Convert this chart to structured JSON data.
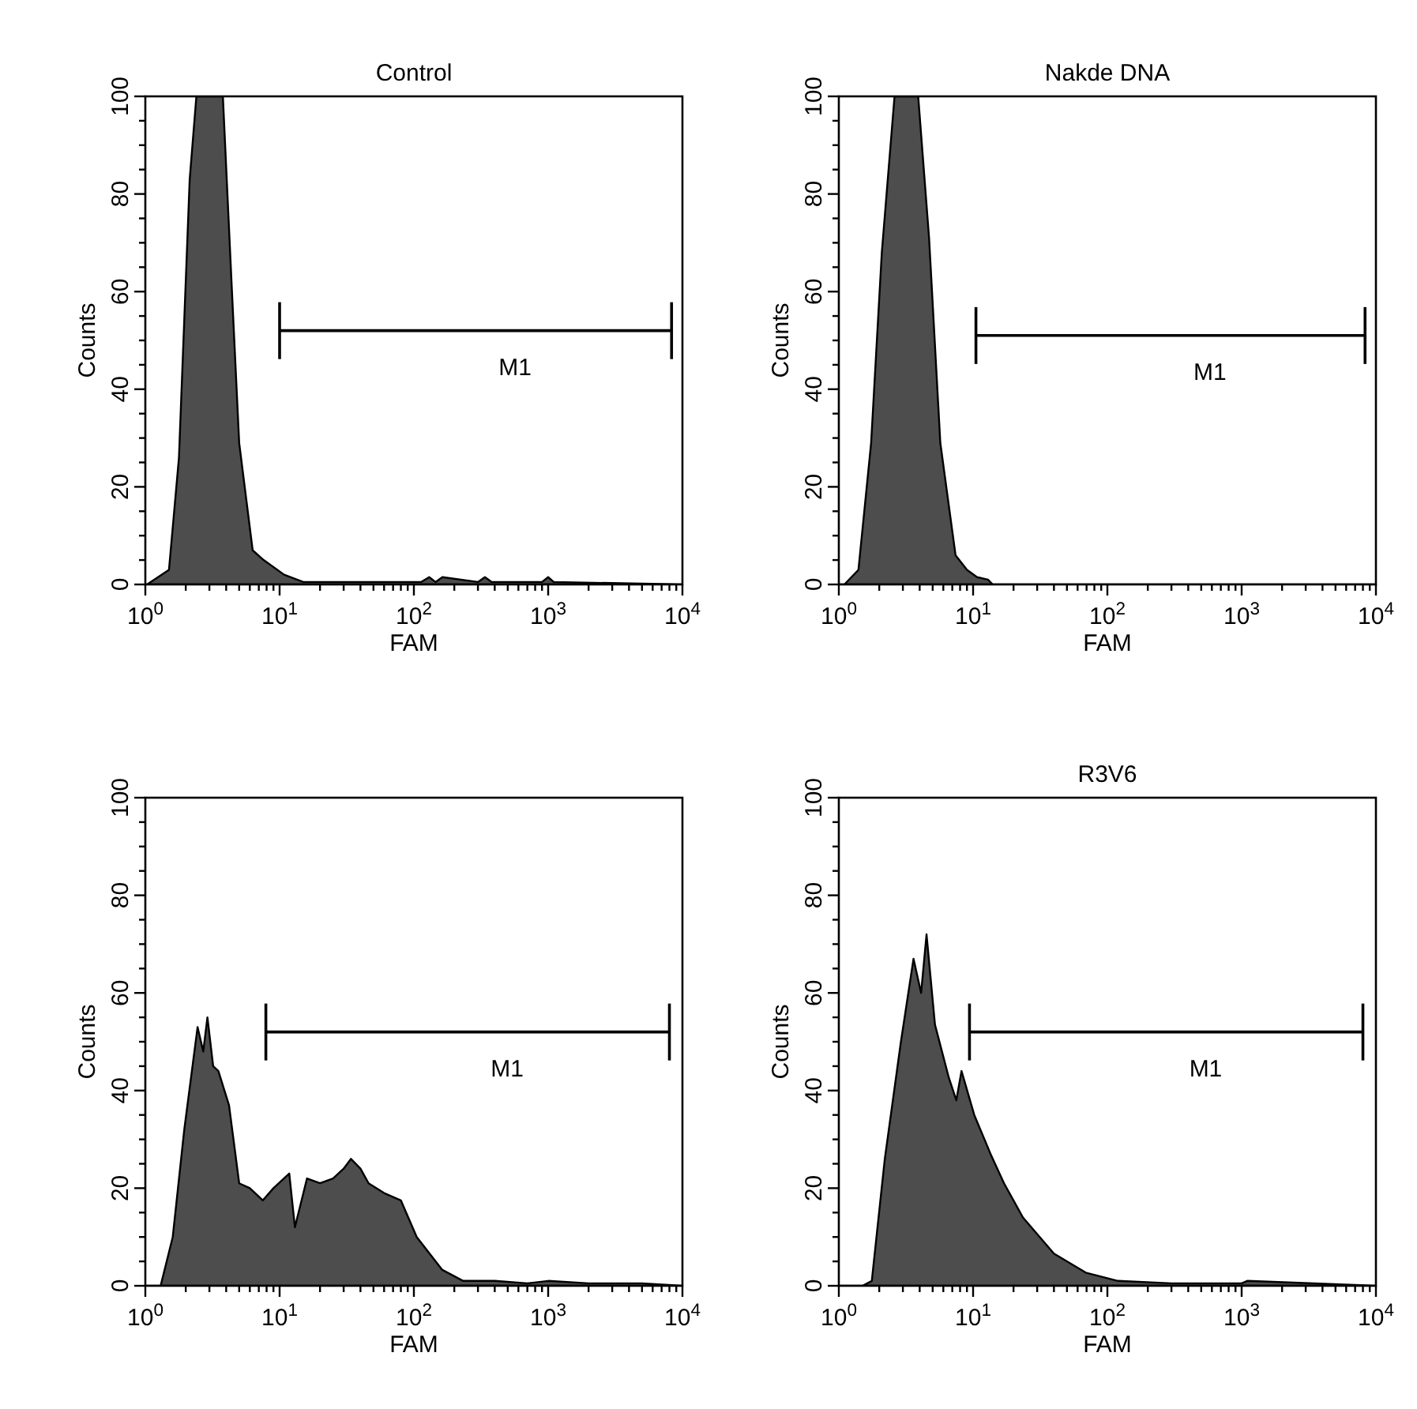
{
  "chart_data": [
    {
      "type": "area",
      "title": "Control",
      "xlabel": "FAM",
      "ylabel": "Counts",
      "log": "x",
      "xlim": [
        1,
        10000
      ],
      "ylim": [
        0,
        100
      ],
      "xticks": [
        {
          "value": 1,
          "label": "10$^{0}$"
        },
        {
          "value": 2,
          "label": null
        },
        {
          "value": 3,
          "label": null
        },
        {
          "value": 4,
          "label": null
        },
        {
          "value": 5,
          "label": null
        },
        {
          "value": 6,
          "label": null
        },
        {
          "value": 7,
          "label": null
        },
        {
          "value": 8,
          "label": null
        },
        {
          "value": 9,
          "label": null
        },
        {
          "value": 10,
          "label": "10$^{1}$"
        },
        {
          "value": 20,
          "label": null
        },
        {
          "value": 30,
          "label": null
        },
        {
          "value": 40,
          "label": null
        },
        {
          "value": 50,
          "label": null
        },
        {
          "value": 60,
          "label": null
        },
        {
          "value": 70,
          "label": null
        },
        {
          "value": 80,
          "label": null
        },
        {
          "value": 90,
          "label": null
        },
        {
          "value": 100,
          "label": "10$^{2}$"
        },
        {
          "value": 200,
          "label": null
        },
        {
          "value": 300,
          "label": null
        },
        {
          "value": 400,
          "label": null
        },
        {
          "value": 500,
          "label": null
        },
        {
          "value": 600,
          "label": null
        },
        {
          "value": 700,
          "label": null
        },
        {
          "value": 800,
          "label": null
        },
        {
          "value": 900,
          "label": null
        },
        {
          "value": 1000,
          "label": "10$^{3}$"
        },
        {
          "value": 2000,
          "label": null
        },
        {
          "value": 3000,
          "label": null
        },
        {
          "value": 4000,
          "label": null
        },
        {
          "value": 5000,
          "label": null
        },
        {
          "value": 6000,
          "label": null
        },
        {
          "value": 7000,
          "label": null
        },
        {
          "value": 8000,
          "label": null
        },
        {
          "value": 9000,
          "label": null
        },
        {
          "value": 10000,
          "label": "10$^{4}$"
        }
      ],
      "yticks": [
        0,
        {
          "value": 5,
          "label": null
        },
        {
          "value": 10,
          "label": null
        },
        {
          "value": 15,
          "label": null
        },
        20,
        {
          "value": 25,
          "label": null
        },
        {
          "value": 30,
          "label": null
        },
        {
          "value": 35,
          "label": null
        },
        40,
        {
          "value": 45,
          "label": null
        },
        {
          "value": 50,
          "label": null
        },
        {
          "value": 55,
          "label": null
        },
        60,
        {
          "value": 65,
          "label": null
        },
        {
          "value": 70,
          "label": null
        },
        {
          "value": 75,
          "label": null
        },
        80,
        {
          "value": 85,
          "label": null
        },
        {
          "value": 90,
          "label": null
        },
        {
          "value": 95,
          "label": null
        },
        100
      ],
      "x": [
        1,
        1.03,
        1.5,
        1.78,
        2.14,
        2.4,
        3.78,
        4.4,
        5,
        6.3,
        7.6,
        10.8,
        15,
        113,
        130,
        145,
        163,
        300,
        338,
        380,
        900,
        1000,
        1100,
        10000
      ],
      "series": [
        {
          "color": "#4d4d4d",
          "values": [
            0,
            0,
            3,
            26,
            83,
            100,
            100,
            61,
            29,
            7,
            5,
            2,
            0.5,
            0.5,
            1.5,
            0.5,
            1.5,
            0.5,
            1.5,
            0.5,
            0.5,
            1.5,
            0.5,
            0
          ]
        },
        {
          "type": "line",
          "name": "M1",
          "color": "#000000",
          "x": [
            10,
            8300
          ],
          "values": [
            52,
            52
          ]
        }
      ]
    },
    {
      "type": "area",
      "title": "Nakde DNA",
      "xlabel": "FAM",
      "ylabel": "Counts",
      "log": "x",
      "xlim": [
        1,
        10000
      ],
      "ylim": [
        0,
        100
      ],
      "xticks": [
        {
          "value": 1,
          "label": "10$^{0}$"
        },
        {
          "value": 2,
          "label": null
        },
        {
          "value": 3,
          "label": null
        },
        {
          "value": 4,
          "label": null
        },
        {
          "value": 5,
          "label": null
        },
        {
          "value": 6,
          "label": null
        },
        {
          "value": 7,
          "label": null
        },
        {
          "value": 8,
          "label": null
        },
        {
          "value": 9,
          "label": null
        },
        {
          "value": 10,
          "label": "10$^{1}$"
        },
        {
          "value": 20,
          "label": null
        },
        {
          "value": 30,
          "label": null
        },
        {
          "value": 40,
          "label": null
        },
        {
          "value": 50,
          "label": null
        },
        {
          "value": 60,
          "label": null
        },
        {
          "value": 70,
          "label": null
        },
        {
          "value": 80,
          "label": null
        },
        {
          "value": 90,
          "label": null
        },
        {
          "value": 100,
          "label": "10$^{2}$"
        },
        {
          "value": 200,
          "label": null
        },
        {
          "value": 300,
          "label": null
        },
        {
          "value": 400,
          "label": null
        },
        {
          "value": 500,
          "label": null
        },
        {
          "value": 600,
          "label": null
        },
        {
          "value": 700,
          "label": null
        },
        {
          "value": 800,
          "label": null
        },
        {
          "value": 900,
          "label": null
        },
        {
          "value": 1000,
          "label": "10$^{3}$"
        },
        {
          "value": 2000,
          "label": null
        },
        {
          "value": 3000,
          "label": null
        },
        {
          "value": 4000,
          "label": null
        },
        {
          "value": 5000,
          "label": null
        },
        {
          "value": 6000,
          "label": null
        },
        {
          "value": 7000,
          "label": null
        },
        {
          "value": 8000,
          "label": null
        },
        {
          "value": 9000,
          "label": null
        },
        {
          "value": 10000,
          "label": "10$^{4}$"
        }
      ],
      "yticks": [
        0,
        {
          "value": 5,
          "label": null
        },
        {
          "value": 10,
          "label": null
        },
        {
          "value": 15,
          "label": null
        },
        20,
        {
          "value": 25,
          "label": null
        },
        {
          "value": 30,
          "label": null
        },
        {
          "value": 35,
          "label": null
        },
        40,
        {
          "value": 45,
          "label": null
        },
        {
          "value": 50,
          "label": null
        },
        {
          "value": 55,
          "label": null
        },
        60,
        {
          "value": 65,
          "label": null
        },
        {
          "value": 70,
          "label": null
        },
        {
          "value": 75,
          "label": null
        },
        80,
        {
          "value": 85,
          "label": null
        },
        {
          "value": 90,
          "label": null
        },
        {
          "value": 95,
          "label": null
        },
        100
      ],
      "x": [
        1,
        1.1,
        1.4,
        1.74,
        2.09,
        2.6,
        3.9,
        4.7,
        5.7,
        7.4,
        9,
        10.7,
        12.9,
        14,
        10000
      ],
      "series": [
        {
          "color": "#4d4d4d",
          "values": [
            0,
            0,
            3,
            29,
            68,
            100,
            100,
            71,
            29,
            6,
            3,
            1.5,
            1,
            0,
            0
          ]
        },
        {
          "type": "line",
          "name": "M1",
          "color": "#000000",
          "x": [
            10.5,
            8300
          ],
          "values": [
            51,
            51
          ]
        }
      ]
    },
    {
      "type": "area",
      "xlabel": "FAM",
      "ylabel": "Counts",
      "log": "x",
      "xlim": [
        1,
        10000
      ],
      "ylim": [
        0,
        100
      ],
      "xticks": [
        {
          "value": 1,
          "label": "10$^{0}$"
        },
        {
          "value": 2,
          "label": null
        },
        {
          "value": 3,
          "label": null
        },
        {
          "value": 4,
          "label": null
        },
        {
          "value": 5,
          "label": null
        },
        {
          "value": 6,
          "label": null
        },
        {
          "value": 7,
          "label": null
        },
        {
          "value": 8,
          "label": null
        },
        {
          "value": 9,
          "label": null
        },
        {
          "value": 10,
          "label": "10$^{1}$"
        },
        {
          "value": 20,
          "label": null
        },
        {
          "value": 30,
          "label": null
        },
        {
          "value": 40,
          "label": null
        },
        {
          "value": 50,
          "label": null
        },
        {
          "value": 60,
          "label": null
        },
        {
          "value": 70,
          "label": null
        },
        {
          "value": 80,
          "label": null
        },
        {
          "value": 90,
          "label": null
        },
        {
          "value": 100,
          "label": "10$^{2}$"
        },
        {
          "value": 200,
          "label": null
        },
        {
          "value": 300,
          "label": null
        },
        {
          "value": 400,
          "label": null
        },
        {
          "value": 500,
          "label": null
        },
        {
          "value": 600,
          "label": null
        },
        {
          "value": 700,
          "label": null
        },
        {
          "value": 800,
          "label": null
        },
        {
          "value": 900,
          "label": null
        },
        {
          "value": 1000,
          "label": "10$^{3}$"
        },
        {
          "value": 2000,
          "label": null
        },
        {
          "value": 3000,
          "label": null
        },
        {
          "value": 4000,
          "label": null
        },
        {
          "value": 5000,
          "label": null
        },
        {
          "value": 6000,
          "label": null
        },
        {
          "value": 7000,
          "label": null
        },
        {
          "value": 8000,
          "label": null
        },
        {
          "value": 9000,
          "label": null
        },
        {
          "value": 10000,
          "label": "10$^{4}$"
        }
      ],
      "yticks": [
        0,
        {
          "value": 5,
          "label": null
        },
        {
          "value": 10,
          "label": null
        },
        {
          "value": 15,
          "label": null
        },
        20,
        {
          "value": 25,
          "label": null
        },
        {
          "value": 30,
          "label": null
        },
        {
          "value": 35,
          "label": null
        },
        40,
        {
          "value": 45,
          "label": null
        },
        {
          "value": 50,
          "label": null
        },
        {
          "value": 55,
          "label": null
        },
        60,
        {
          "value": 65,
          "label": null
        },
        {
          "value": 70,
          "label": null
        },
        {
          "value": 75,
          "label": null
        },
        80,
        {
          "value": 85,
          "label": null
        },
        {
          "value": 90,
          "label": null
        },
        {
          "value": 95,
          "label": null
        },
        100
      ],
      "x": [
        1,
        1.3,
        1.6,
        1.95,
        2.45,
        2.7,
        2.9,
        3.2,
        3.5,
        4.2,
        5,
        6,
        7.5,
        9,
        11.8,
        13,
        16,
        20,
        25,
        30,
        34,
        40,
        46,
        60,
        80,
        105,
        162,
        233,
        400,
        700,
        1000,
        2000,
        5000,
        10000
      ],
      "series": [
        {
          "color": "#4d4d4d",
          "values": [
            0,
            0,
            10,
            32,
            53,
            48,
            55,
            45,
            44,
            37,
            21,
            20,
            17.5,
            20,
            23,
            12,
            22,
            21,
            22,
            24,
            26,
            24,
            21,
            19,
            17.5,
            10,
            3.3,
            1,
            1,
            0.5,
            1,
            0.5,
            0.5,
            0
          ]
        },
        {
          "type": "line",
          "name": "M1",
          "color": "#000000",
          "x": [
            7.9,
            8000
          ],
          "values": [
            52,
            52
          ]
        }
      ]
    },
    {
      "type": "area",
      "title": "R3V6",
      "xlabel": "FAM",
      "ylabel": "Counts",
      "log": "x",
      "xlim": [
        1,
        10000
      ],
      "ylim": [
        0,
        100
      ],
      "xticks": [
        {
          "value": 1,
          "label": "10$^{0}$"
        },
        {
          "value": 2,
          "label": null
        },
        {
          "value": 3,
          "label": null
        },
        {
          "value": 4,
          "label": null
        },
        {
          "value": 5,
          "label": null
        },
        {
          "value": 6,
          "label": null
        },
        {
          "value": 7,
          "label": null
        },
        {
          "value": 8,
          "label": null
        },
        {
          "value": 9,
          "label": null
        },
        {
          "value": 10,
          "label": "10$^{1}$"
        },
        {
          "value": 20,
          "label": null
        },
        {
          "value": 30,
          "label": null
        },
        {
          "value": 40,
          "label": null
        },
        {
          "value": 50,
          "label": null
        },
        {
          "value": 60,
          "label": null
        },
        {
          "value": 70,
          "label": null
        },
        {
          "value": 80,
          "label": null
        },
        {
          "value": 90,
          "label": null
        },
        {
          "value": 100,
          "label": "10$^{2}$"
        },
        {
          "value": 200,
          "label": null
        },
        {
          "value": 300,
          "label": null
        },
        {
          "value": 400,
          "label": null
        },
        {
          "value": 500,
          "label": null
        },
        {
          "value": 600,
          "label": null
        },
        {
          "value": 700,
          "label": null
        },
        {
          "value": 800,
          "label": null
        },
        {
          "value": 900,
          "label": null
        },
        {
          "value": 1000,
          "label": "10$^{3}$"
        },
        {
          "value": 2000,
          "label": null
        },
        {
          "value": 3000,
          "label": null
        },
        {
          "value": 4000,
          "label": null
        },
        {
          "value": 5000,
          "label": null
        },
        {
          "value": 6000,
          "label": null
        },
        {
          "value": 7000,
          "label": null
        },
        {
          "value": 8000,
          "label": null
        },
        {
          "value": 9000,
          "label": null
        },
        {
          "value": 10000,
          "label": "10$^{4}$"
        }
      ],
      "yticks": [
        0,
        {
          "value": 5,
          "label": null
        },
        {
          "value": 10,
          "label": null
        },
        {
          "value": 15,
          "label": null
        },
        20,
        {
          "value": 25,
          "label": null
        },
        {
          "value": 30,
          "label": null
        },
        {
          "value": 35,
          "label": null
        },
        40,
        {
          "value": 45,
          "label": null
        },
        {
          "value": 50,
          "label": null
        },
        {
          "value": 55,
          "label": null
        },
        60,
        {
          "value": 65,
          "label": null
        },
        {
          "value": 70,
          "label": null
        },
        {
          "value": 75,
          "label": null
        },
        80,
        {
          "value": 85,
          "label": null
        },
        {
          "value": 90,
          "label": null
        },
        {
          "value": 95,
          "label": null
        },
        100
      ],
      "x": [
        1,
        1.5,
        1.76,
        2.2,
        2.9,
        3.6,
        4.1,
        4.5,
        5.2,
        6.6,
        7.5,
        8.2,
        10.2,
        13.5,
        17,
        23.5,
        40,
        69,
        120,
        300,
        1000,
        1100,
        10000
      ],
      "series": [
        {
          "color": "#4d4d4d",
          "values": [
            0,
            0,
            1,
            26,
            50,
            67,
            60,
            72,
            53.5,
            42.6,
            38,
            44,
            35,
            27,
            21,
            14,
            6.6,
            2.7,
            1,
            0.5,
            0.5,
            1,
            0
          ]
        },
        {
          "type": "line",
          "name": "M1",
          "color": "#000000",
          "x": [
            9.4,
            8000
          ],
          "values": [
            52,
            52
          ]
        }
      ]
    }
  ]
}
